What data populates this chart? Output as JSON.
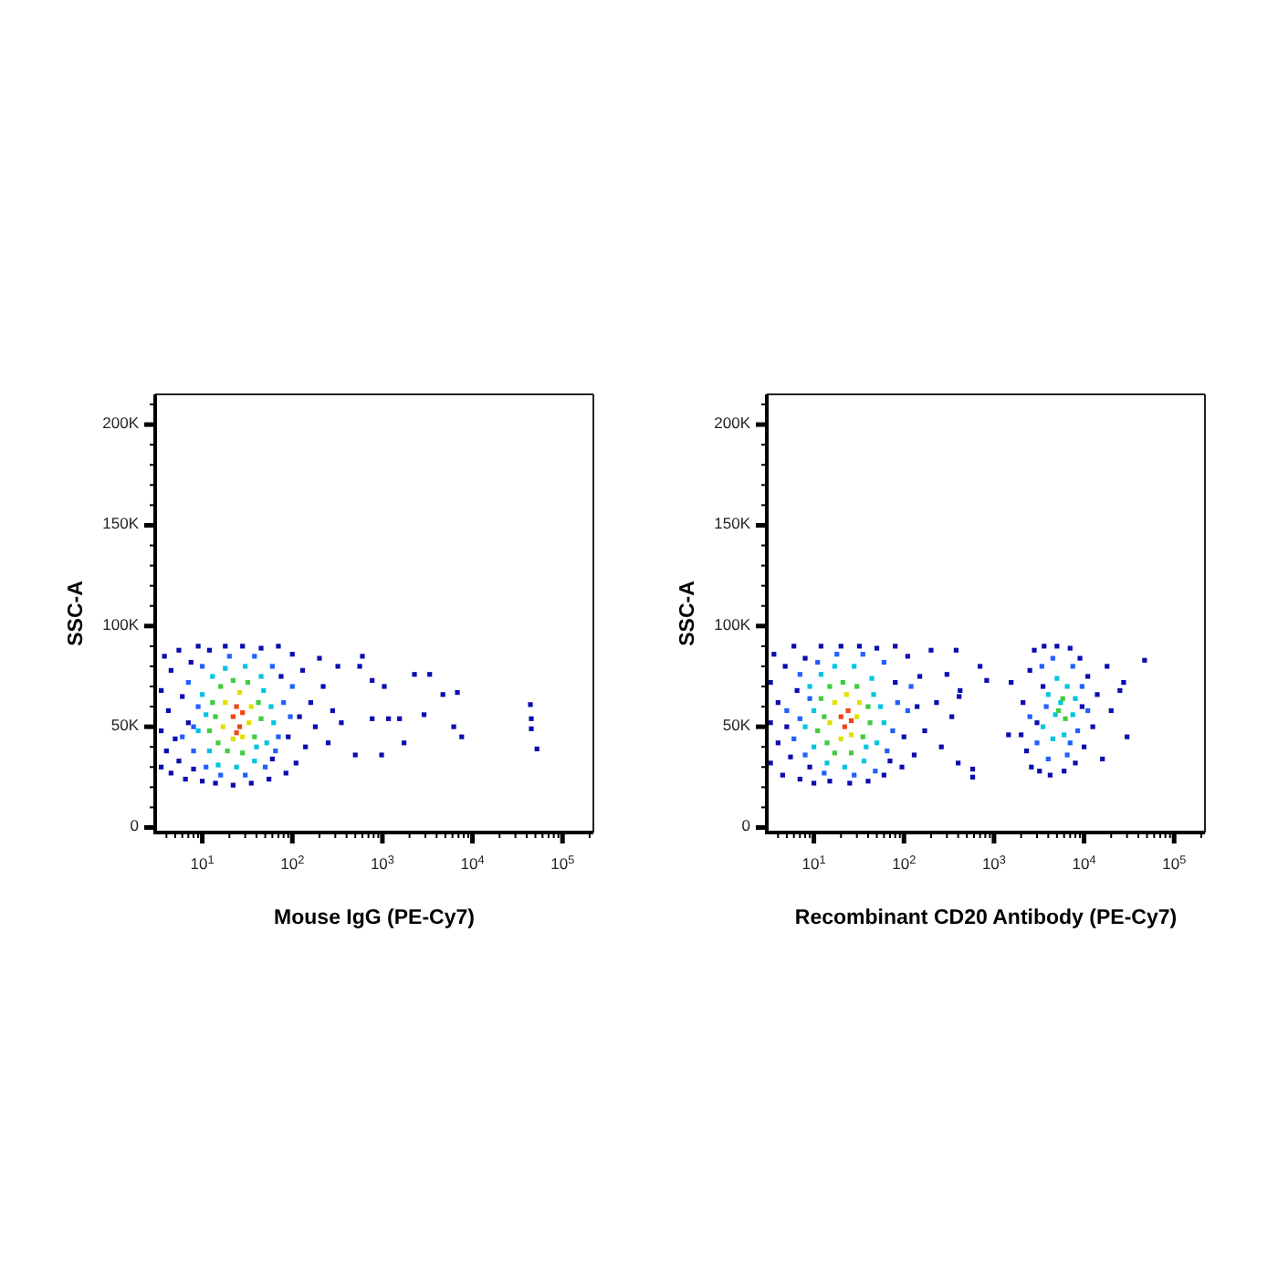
{
  "chart_data": [
    {
      "type": "scatter",
      "xlabel": "Mouse IgG (PE-Cy7)",
      "ylabel": "SSC-A",
      "log": "x",
      "marker": "square",
      "xlim": [
        3,
        220000
      ],
      "ylim": [
        -2500,
        215000
      ],
      "xticks": [
        {
          "value": 4,
          "label": null
        },
        {
          "value": 5,
          "label": null
        },
        {
          "value": 6,
          "label": null
        },
        {
          "value": 7,
          "label": null
        },
        {
          "value": 8,
          "label": null
        },
        {
          "value": 9,
          "label": null
        },
        {
          "value": 10,
          "label": "10$^{1}$"
        },
        {
          "value": 20,
          "label": null
        },
        {
          "value": 30,
          "label": null
        },
        {
          "value": 40,
          "label": null
        },
        {
          "value": 50,
          "label": null
        },
        {
          "value": 60,
          "label": null
        },
        {
          "value": 70,
          "label": null
        },
        {
          "value": 80,
          "label": null
        },
        {
          "value": 90,
          "label": null
        },
        {
          "value": 100,
          "label": "10$^{2}$"
        },
        {
          "value": 200,
          "label": null
        },
        {
          "value": 300,
          "label": null
        },
        {
          "value": 400,
          "label": null
        },
        {
          "value": 500,
          "label": null
        },
        {
          "value": 600,
          "label": null
        },
        {
          "value": 700,
          "label": null
        },
        {
          "value": 800,
          "label": null
        },
        {
          "value": 900,
          "label": null
        },
        {
          "value": 1000,
          "label": "10$^{3}$"
        },
        {
          "value": 2000,
          "label": null
        },
        {
          "value": 3000,
          "label": null
        },
        {
          "value": 4000,
          "label": null
        },
        {
          "value": 5000,
          "label": null
        },
        {
          "value": 6000,
          "label": null
        },
        {
          "value": 7000,
          "label": null
        },
        {
          "value": 8000,
          "label": null
        },
        {
          "value": 9000,
          "label": null
        },
        {
          "value": 10000,
          "label": "10$^{4}$"
        },
        {
          "value": 20000,
          "label": null
        },
        {
          "value": 30000,
          "label": null
        },
        {
          "value": 40000,
          "label": null
        },
        {
          "value": 50000,
          "label": null
        },
        {
          "value": 60000,
          "label": null
        },
        {
          "value": 70000,
          "label": null
        },
        {
          "value": 80000,
          "label": null
        },
        {
          "value": 90000,
          "label": null
        },
        {
          "value": 100000,
          "label": "10$^{5}$"
        },
        {
          "value": 200000,
          "label": null
        }
      ],
      "yticks": [
        0,
        {
          "value": 10000,
          "label": null
        },
        {
          "value": 20000,
          "label": null
        },
        {
          "value": 30000,
          "label": null
        },
        {
          "value": 40000,
          "label": null
        },
        {
          "value": 50000,
          "label": "50K"
        },
        {
          "value": 60000,
          "label": null
        },
        {
          "value": 70000,
          "label": null
        },
        {
          "value": 80000,
          "label": null
        },
        {
          "value": 90000,
          "label": null
        },
        {
          "value": 100000,
          "label": "100K"
        },
        {
          "value": 110000,
          "label": null
        },
        {
          "value": 120000,
          "label": null
        },
        {
          "value": 130000,
          "label": null
        },
        {
          "value": 140000,
          "label": null
        },
        {
          "value": 150000,
          "label": "150K"
        },
        {
          "value": 160000,
          "label": null
        },
        {
          "value": 170000,
          "label": null
        },
        {
          "value": 180000,
          "label": null
        },
        {
          "value": 190000,
          "label": null
        },
        {
          "value": 200000,
          "label": "200K"
        },
        {
          "value": 210000,
          "label": null
        }
      ],
      "series": [
        {
          "color": "#0c0cb0",
          "x": [
            3.5,
            3.5,
            3.5,
            3.8,
            4,
            4.2,
            4.5,
            4.5,
            5,
            5.5,
            5.5,
            6,
            6.5,
            7,
            7.5,
            8,
            9,
            10,
            12,
            14,
            18,
            22,
            28,
            35,
            45,
            55,
            70,
            85,
            100,
            110,
            130,
            140,
            160,
            180,
            200,
            220,
            250,
            280,
            320,
            350,
            120,
            90,
            75,
            60,
            560,
            600,
            500,
            770,
            1050,
            770,
            980,
            1170,
            1550,
            1740,
            2270,
            2900,
            3350,
            4700,
            6200,
            6800,
            7600,
            44000,
            45000,
            45000,
            52000
          ],
          "values": [
            30000,
            48000,
            68000,
            85000,
            38000,
            58000,
            27000,
            78000,
            44000,
            88000,
            33000,
            65000,
            24000,
            52000,
            82000,
            29000,
            90000,
            23000,
            88000,
            22000,
            90000,
            21000,
            90000,
            22000,
            89000,
            24000,
            90000,
            27000,
            86000,
            32000,
            78000,
            40000,
            62000,
            50000,
            84000,
            70000,
            42000,
            58000,
            80000,
            52000,
            55000,
            45000,
            75000,
            34000,
            80000,
            85000,
            36000,
            73000,
            70000,
            54000,
            36000,
            54000,
            54000,
            42000,
            76000,
            56000,
            76000,
            66000,
            50000,
            67000,
            45000,
            61000,
            54000,
            49000,
            39000
          ]
        },
        {
          "color": "#2060ff",
          "x": [
            6,
            7,
            8,
            9,
            10,
            11,
            16,
            20,
            30,
            38,
            50,
            60,
            70,
            80,
            95,
            100,
            65,
            8
          ],
          "values": [
            45000,
            72000,
            38000,
            60000,
            80000,
            30000,
            26000,
            85000,
            26000,
            85000,
            30000,
            80000,
            45000,
            62000,
            55000,
            70000,
            38000,
            50000
          ]
        },
        {
          "color": "#00c4e0",
          "x": [
            9,
            10,
            12,
            13,
            15,
            18,
            24,
            30,
            38,
            45,
            52,
            58,
            62,
            48,
            11,
            40
          ],
          "values": [
            48000,
            66000,
            38000,
            75000,
            31000,
            79000,
            30000,
            80000,
            33000,
            75000,
            42000,
            60000,
            52000,
            68000,
            56000,
            40000
          ]
        },
        {
          "color": "#40cc40",
          "x": [
            12,
            13,
            15,
            16,
            19,
            22,
            28,
            32,
            38,
            42,
            45,
            14
          ],
          "values": [
            48000,
            62000,
            42000,
            70000,
            38000,
            73000,
            37000,
            72000,
            45000,
            62000,
            54000,
            55000
          ]
        },
        {
          "color": "#e0e000",
          "x": [
            17,
            18,
            22,
            26,
            33,
            35,
            28
          ],
          "values": [
            50000,
            62000,
            44000,
            67000,
            52000,
            60000,
            45000
          ]
        },
        {
          "color": "#f04614",
          "x": [
            22,
            24,
            26,
            28,
            24
          ],
          "values": [
            55000,
            60000,
            50000,
            57000,
            47000
          ]
        }
      ]
    },
    {
      "type": "scatter",
      "xlabel": "Recombinant CD20 Antibody (PE-Cy7)",
      "ylabel": "SSC-A",
      "log": "x",
      "marker": "square",
      "xlim": [
        3,
        220000
      ],
      "ylim": [
        -2500,
        215000
      ],
      "xticks": [
        {
          "value": 4,
          "label": null
        },
        {
          "value": 5,
          "label": null
        },
        {
          "value": 6,
          "label": null
        },
        {
          "value": 7,
          "label": null
        },
        {
          "value": 8,
          "label": null
        },
        {
          "value": 9,
          "label": null
        },
        {
          "value": 10,
          "label": "10$^{1}$"
        },
        {
          "value": 20,
          "label": null
        },
        {
          "value": 30,
          "label": null
        },
        {
          "value": 40,
          "label": null
        },
        {
          "value": 50,
          "label": null
        },
        {
          "value": 60,
          "label": null
        },
        {
          "value": 70,
          "label": null
        },
        {
          "value": 80,
          "label": null
        },
        {
          "value": 90,
          "label": null
        },
        {
          "value": 100,
          "label": "10$^{2}$"
        },
        {
          "value": 200,
          "label": null
        },
        {
          "value": 300,
          "label": null
        },
        {
          "value": 400,
          "label": null
        },
        {
          "value": 500,
          "label": null
        },
        {
          "value": 600,
          "label": null
        },
        {
          "value": 700,
          "label": null
        },
        {
          "value": 800,
          "label": null
        },
        {
          "value": 900,
          "label": null
        },
        {
          "value": 1000,
          "label": "10$^{3}$"
        },
        {
          "value": 2000,
          "label": null
        },
        {
          "value": 3000,
          "label": null
        },
        {
          "value": 4000,
          "label": null
        },
        {
          "value": 5000,
          "label": null
        },
        {
          "value": 6000,
          "label": null
        },
        {
          "value": 7000,
          "label": null
        },
        {
          "value": 8000,
          "label": null
        },
        {
          "value": 9000,
          "label": null
        },
        {
          "value": 10000,
          "label": "10$^{4}$"
        },
        {
          "value": 20000,
          "label": null
        },
        {
          "value": 30000,
          "label": null
        },
        {
          "value": 40000,
          "label": null
        },
        {
          "value": 50000,
          "label": null
        },
        {
          "value": 60000,
          "label": null
        },
        {
          "value": 70000,
          "label": null
        },
        {
          "value": 80000,
          "label": null
        },
        {
          "value": 90000,
          "label": null
        },
        {
          "value": 100000,
          "label": "10$^{5}$"
        },
        {
          "value": 200000,
          "label": null
        }
      ],
      "yticks": [
        0,
        {
          "value": 10000,
          "label": null
        },
        {
          "value": 20000,
          "label": null
        },
        {
          "value": 30000,
          "label": null
        },
        {
          "value": 40000,
          "label": null
        },
        {
          "value": 50000,
          "label": "50K"
        },
        {
          "value": 60000,
          "label": null
        },
        {
          "value": 70000,
          "label": null
        },
        {
          "value": 80000,
          "label": null
        },
        {
          "value": 90000,
          "label": null
        },
        {
          "value": 100000,
          "label": "100K"
        },
        {
          "value": 110000,
          "label": null
        },
        {
          "value": 120000,
          "label": null
        },
        {
          "value": 130000,
          "label": null
        },
        {
          "value": 140000,
          "label": null
        },
        {
          "value": 150000,
          "label": "150K"
        },
        {
          "value": 160000,
          "label": null
        },
        {
          "value": 170000,
          "label": null
        },
        {
          "value": 180000,
          "label": null
        },
        {
          "value": 190000,
          "label": null
        },
        {
          "value": 200000,
          "label": "200K"
        },
        {
          "value": 210000,
          "label": null
        }
      ],
      "series": [
        {
          "color": "#0c0cb0",
          "x": [
            3.3,
            3.3,
            3.3,
            3.6,
            4,
            4,
            4.5,
            4.8,
            5,
            5.5,
            6,
            6.5,
            7,
            8,
            9,
            10,
            12,
            15,
            20,
            25,
            32,
            40,
            50,
            60,
            80,
            95,
            110,
            130,
            150,
            170,
            200,
            230,
            260,
            300,
            340,
            380,
            140,
            100,
            80,
            70,
            420,
            400,
            410,
            580,
            580,
            700,
            830,
            1450,
            1550,
            2000,
            2100,
            2300,
            2500,
            2600,
            2800,
            3000,
            3200,
            3600,
            4200,
            5000,
            6000,
            7000,
            8000,
            9000,
            10000,
            11000,
            12500,
            14000,
            16000,
            18000,
            20000,
            25000,
            27500,
            30000,
            47000,
            3500,
            9500
          ],
          "values": [
            32000,
            52000,
            72000,
            86000,
            42000,
            62000,
            26000,
            80000,
            50000,
            35000,
            90000,
            68000,
            24000,
            84000,
            30000,
            22000,
            90000,
            23000,
            90000,
            22000,
            90000,
            23000,
            89000,
            26000,
            90000,
            30000,
            85000,
            36000,
            75000,
            48000,
            88000,
            62000,
            40000,
            76000,
            55000,
            88000,
            60000,
            45000,
            72000,
            33000,
            68000,
            32000,
            65000,
            29000,
            25000,
            80000,
            73000,
            46000,
            72000,
            46000,
            62000,
            38000,
            78000,
            30000,
            88000,
            52000,
            28000,
            90000,
            26000,
            90000,
            28000,
            89000,
            32000,
            84000,
            40000,
            75000,
            50000,
            66000,
            34000,
            80000,
            58000,
            68000,
            72000,
            45000,
            83000,
            70000,
            60000
          ]
        },
        {
          "color": "#2060ff",
          "x": [
            5,
            6,
            7,
            8,
            9,
            11,
            13,
            18,
            28,
            35,
            48,
            60,
            75,
            85,
            110,
            120,
            65,
            7,
            2500,
            3000,
            3400,
            4000,
            4500,
            6500,
            7500,
            8500,
            9500,
            11000,
            3800,
            7000
          ],
          "values": [
            58000,
            44000,
            76000,
            36000,
            64000,
            82000,
            27000,
            86000,
            26000,
            86000,
            28000,
            82000,
            48000,
            62000,
            58000,
            70000,
            38000,
            54000,
            55000,
            42000,
            80000,
            34000,
            84000,
            36000,
            80000,
            48000,
            70000,
            58000,
            60000,
            42000
          ]
        },
        {
          "color": "#00c4e0",
          "x": [
            8,
            9,
            10,
            12,
            14,
            17,
            22,
            28,
            36,
            44,
            50,
            55,
            60,
            46,
            10,
            38,
            3500,
            4000,
            4500,
            5000,
            6000,
            6500,
            7500,
            8000,
            4800,
            5500
          ],
          "values": [
            50000,
            70000,
            40000,
            76000,
            32000,
            80000,
            30000,
            80000,
            33000,
            74000,
            42000,
            60000,
            52000,
            66000,
            58000,
            40000,
            50000,
            66000,
            44000,
            74000,
            46000,
            70000,
            56000,
            64000,
            56000,
            62000
          ]
        },
        {
          "color": "#40cc40",
          "x": [
            11,
            12,
            14,
            15,
            17,
            21,
            26,
            30,
            35,
            40,
            42,
            13,
            5200,
            6200,
            5800
          ],
          "values": [
            48000,
            64000,
            42000,
            70000,
            37000,
            72000,
            37000,
            70000,
            45000,
            60000,
            52000,
            55000,
            58000,
            54000,
            64000
          ]
        },
        {
          "color": "#e0e000",
          "x": [
            15,
            17,
            20,
            23,
            30,
            32,
            26
          ],
          "values": [
            52000,
            62000,
            44000,
            66000,
            55000,
            62000,
            46000
          ]
        },
        {
          "color": "#f04614",
          "x": [
            20,
            22,
            24,
            26
          ],
          "values": [
            55000,
            50000,
            58000,
            53000
          ]
        }
      ]
    }
  ]
}
